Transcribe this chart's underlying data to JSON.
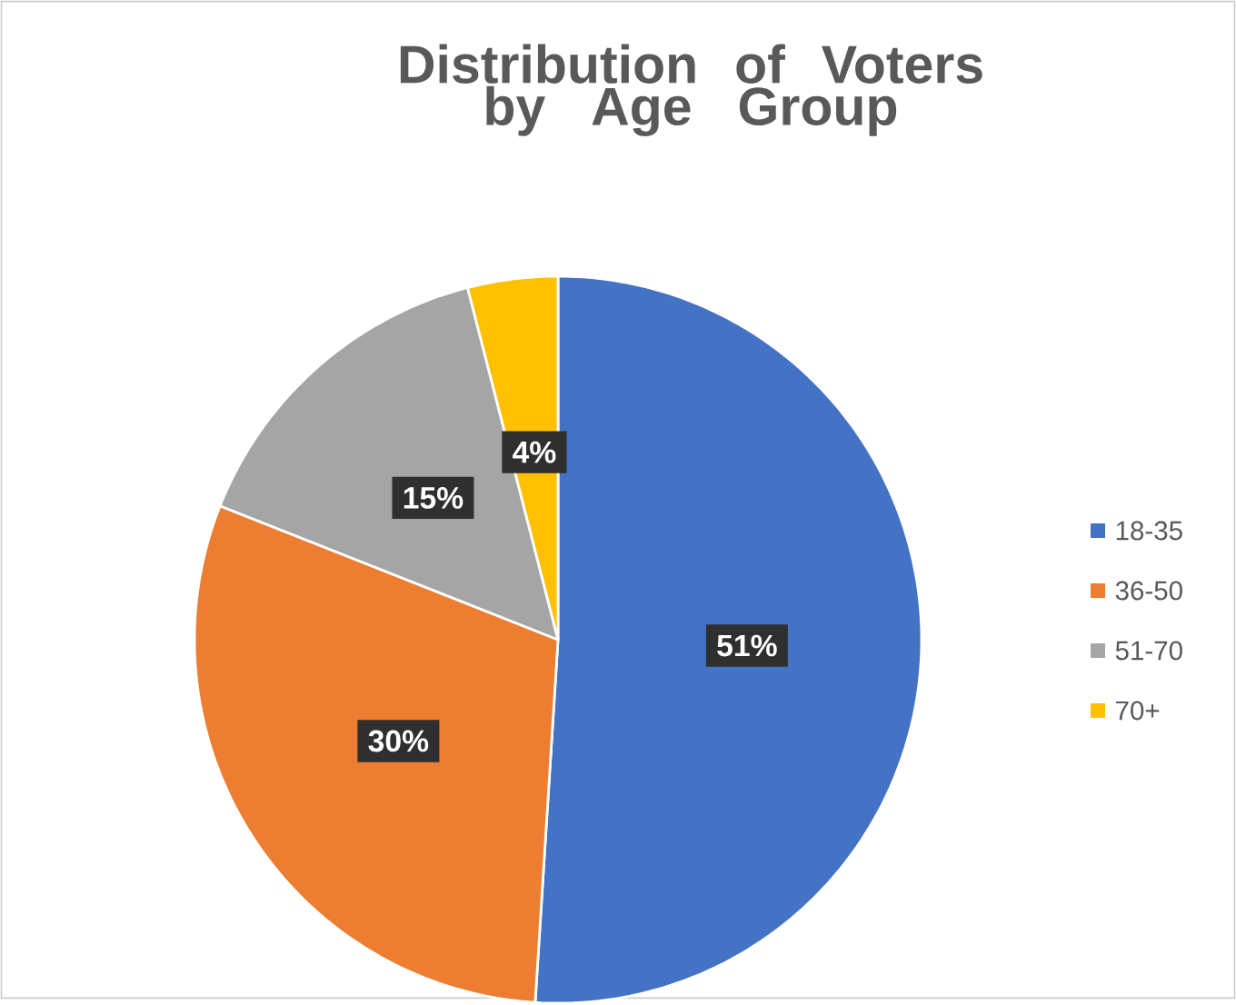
{
  "chart_data": {
    "type": "pie",
    "title": "Distribution of Voters by Age Group",
    "categories": [
      "18-35",
      "36-50",
      "51-70",
      "70+"
    ],
    "values": [
      51,
      30,
      15,
      4
    ],
    "colors": [
      "#4472c4",
      "#ed7d31",
      "#a5a5a5",
      "#ffc000"
    ],
    "value_labels": [
      "51%",
      "30%",
      "15%",
      "4%"
    ],
    "legend": "right"
  }
}
